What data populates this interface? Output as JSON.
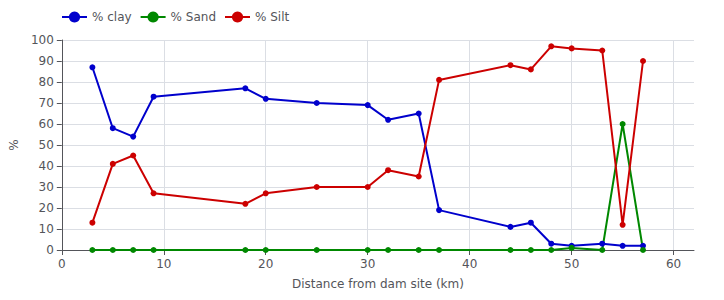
{
  "chart_data": {
    "type": "line",
    "title": "",
    "xlabel": "Distance from dam site (km)",
    "ylabel": "%",
    "xlim": [
      0,
      62
    ],
    "ylim": [
      0,
      100
    ],
    "xticks": [
      0,
      10,
      20,
      30,
      40,
      50,
      60
    ],
    "yticks": [
      0,
      10,
      20,
      30,
      40,
      50,
      60,
      70,
      80,
      90,
      100
    ],
    "x": [
      3,
      5,
      7,
      9,
      18,
      20,
      25,
      30,
      32,
      35,
      37,
      44,
      46,
      48,
      50,
      53,
      55,
      57
    ],
    "series": [
      {
        "name": "% clay",
        "color": "#0000cc",
        "marker": "circle",
        "values": [
          87,
          58,
          54,
          73,
          77,
          72,
          70,
          69,
          62,
          65,
          19,
          11,
          13,
          3,
          2,
          3,
          2,
          2
        ]
      },
      {
        "name": "% Sand",
        "color": "#008800",
        "marker": "circle",
        "values": [
          0,
          0,
          0,
          0,
          0,
          0,
          0,
          0,
          0,
          0,
          0,
          0,
          0,
          0,
          1,
          0,
          60,
          0
        ]
      },
      {
        "name": "% Silt",
        "color": "#cc0000",
        "marker": "circle",
        "values": [
          13,
          41,
          45,
          27,
          22,
          27,
          30,
          30,
          38,
          35,
          81,
          88,
          86,
          97,
          96,
          95,
          12,
          90
        ]
      }
    ],
    "grid": true,
    "legend": "upper left"
  }
}
